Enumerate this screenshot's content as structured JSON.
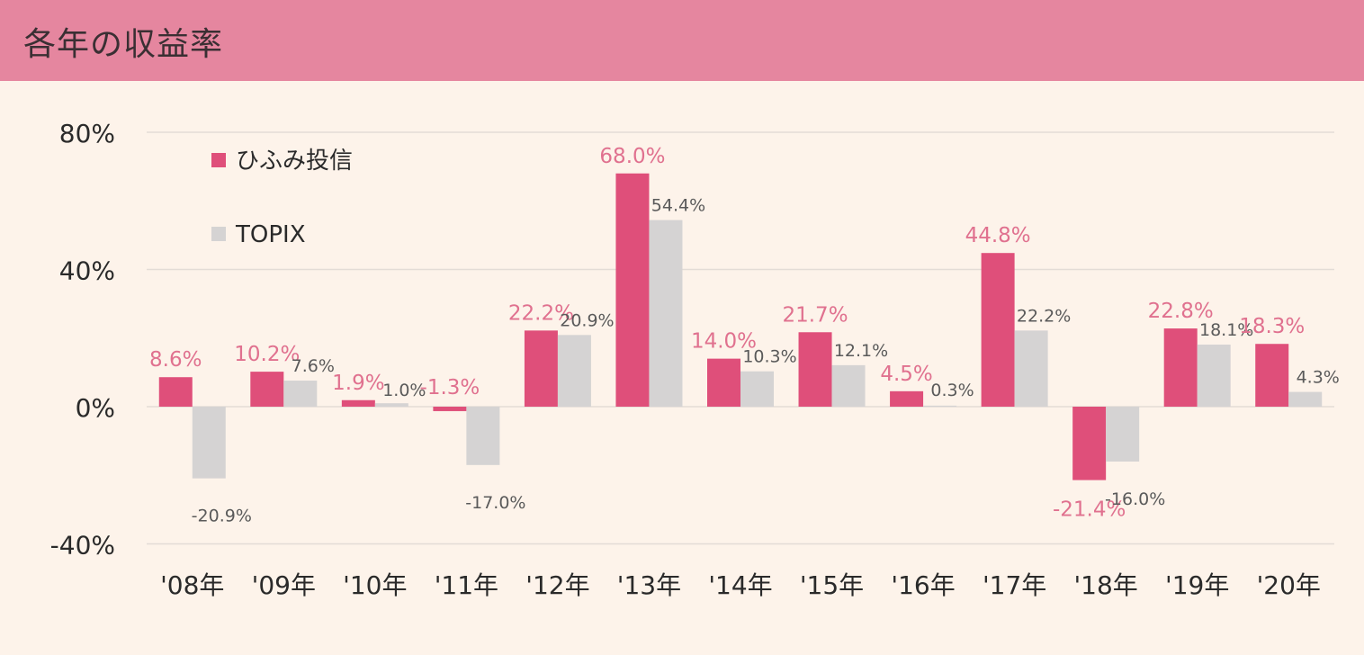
{
  "header": {
    "title": "各年の収益率"
  },
  "chart_data": {
    "type": "bar",
    "title": "各年の収益率",
    "xlabel": "",
    "ylabel": "",
    "ylim": [
      -40,
      80
    ],
    "yticks": [
      80,
      40,
      0,
      -40
    ],
    "ytick_labels": [
      "80%",
      "40%",
      "0%",
      "-40%"
    ],
    "grid": true,
    "legend_position": "top-left",
    "categories": [
      "'08年",
      "'09年",
      "'10年",
      "'11年",
      "'12年",
      "'13年",
      "'14年",
      "'15年",
      "'16年",
      "'17年",
      "'18年",
      "'19年",
      "'20年"
    ],
    "series": [
      {
        "name": "ひふみ投信",
        "color": "#df4f7a",
        "label_color": "#e0718f",
        "values": [
          8.6,
          10.2,
          1.9,
          -1.3,
          22.2,
          68.0,
          14.0,
          21.7,
          4.5,
          44.8,
          -21.4,
          22.8,
          18.3
        ],
        "labels": [
          "8.6%",
          "10.2%",
          "1.9%",
          "-1.3%",
          "22.2%",
          "68.0%",
          "14.0%",
          "21.7%",
          "4.5%",
          "44.8%",
          "-21.4%",
          "22.8%",
          "18.3%"
        ]
      },
      {
        "name": "TOPIX",
        "color": "#d5d3d3",
        "label_color": "#5a5a5a",
        "values": [
          -20.9,
          7.6,
          1.0,
          -17.0,
          20.9,
          54.4,
          10.3,
          12.1,
          0.3,
          22.2,
          -16.0,
          18.1,
          4.3
        ],
        "labels": [
          "-20.9%",
          "7.6%",
          "1.0%",
          "-17.0%",
          "20.9%",
          "54.4%",
          "10.3%",
          "12.1%",
          "0.3%",
          "22.2%",
          "-16.0%",
          "18.1%",
          "4.3%"
        ]
      }
    ]
  }
}
